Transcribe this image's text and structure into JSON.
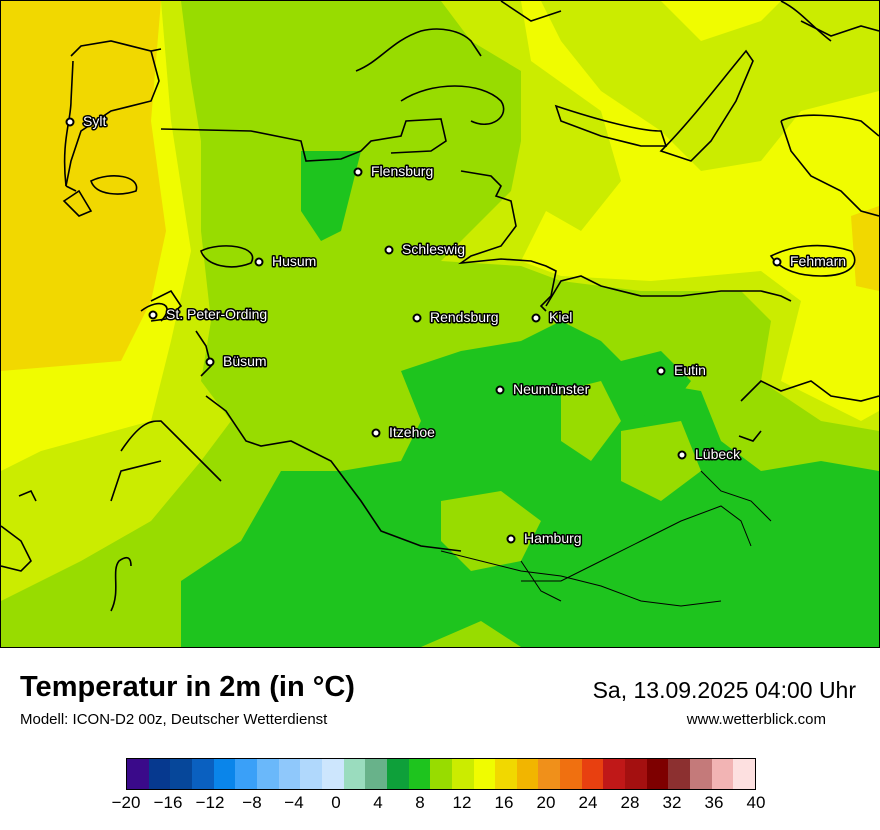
{
  "map": {
    "cities": [
      {
        "name": "Sylt"
      },
      {
        "name": "Flensburg"
      },
      {
        "name": "Schleswig"
      },
      {
        "name": "Husum"
      },
      {
        "name": "Fehmarn"
      },
      {
        "name": "St. Peter-Ording"
      },
      {
        "name": "Rendsburg"
      },
      {
        "name": "Kiel"
      },
      {
        "name": "Büsum"
      },
      {
        "name": "Neumünster"
      },
      {
        "name": "Eutin"
      },
      {
        "name": "Itzehoe"
      },
      {
        "name": "Lübeck"
      },
      {
        "name": "Hamburg"
      }
    ]
  },
  "header": {
    "title": "Temperatur in 2m (in °C)",
    "subtitle": "Modell: ICON-D2 00z, Deutscher Wetterdienst",
    "datetime": "Sa, 13.09.2025 04:00 Uhr",
    "site": "www.wetterblick.com"
  },
  "legend": {
    "colors": [
      "#3a0a8a",
      "#06398f",
      "#06479a",
      "#0a60c0",
      "#0a85ea",
      "#3aa0f8",
      "#6ab8fa",
      "#8fc8fb",
      "#b0d8fc",
      "#cde6fd",
      "#9adcbe",
      "#68b28a",
      "#0ea03a",
      "#1ec41e",
      "#98dc00",
      "#cbec00",
      "#f0fc00",
      "#f1d800",
      "#f2b500",
      "#f0901a",
      "#f07010",
      "#e84010",
      "#c01818",
      "#a41010",
      "#7e0000",
      "#8c3030",
      "#c47a7a",
      "#f2b4b4",
      "#fde0e0"
    ],
    "ticks": [
      "−20",
      "−16",
      "−12",
      "−8",
      "−4",
      "0",
      "4",
      "8",
      "12",
      "16",
      "20",
      "24",
      "28",
      "32",
      "36",
      "40"
    ]
  },
  "colors": {
    "sea_warm": "#f1d800",
    "yellow": "#f0fc00",
    "lime": "#cbec00",
    "light_green": "#98dc00",
    "green": "#1ec41e"
  }
}
